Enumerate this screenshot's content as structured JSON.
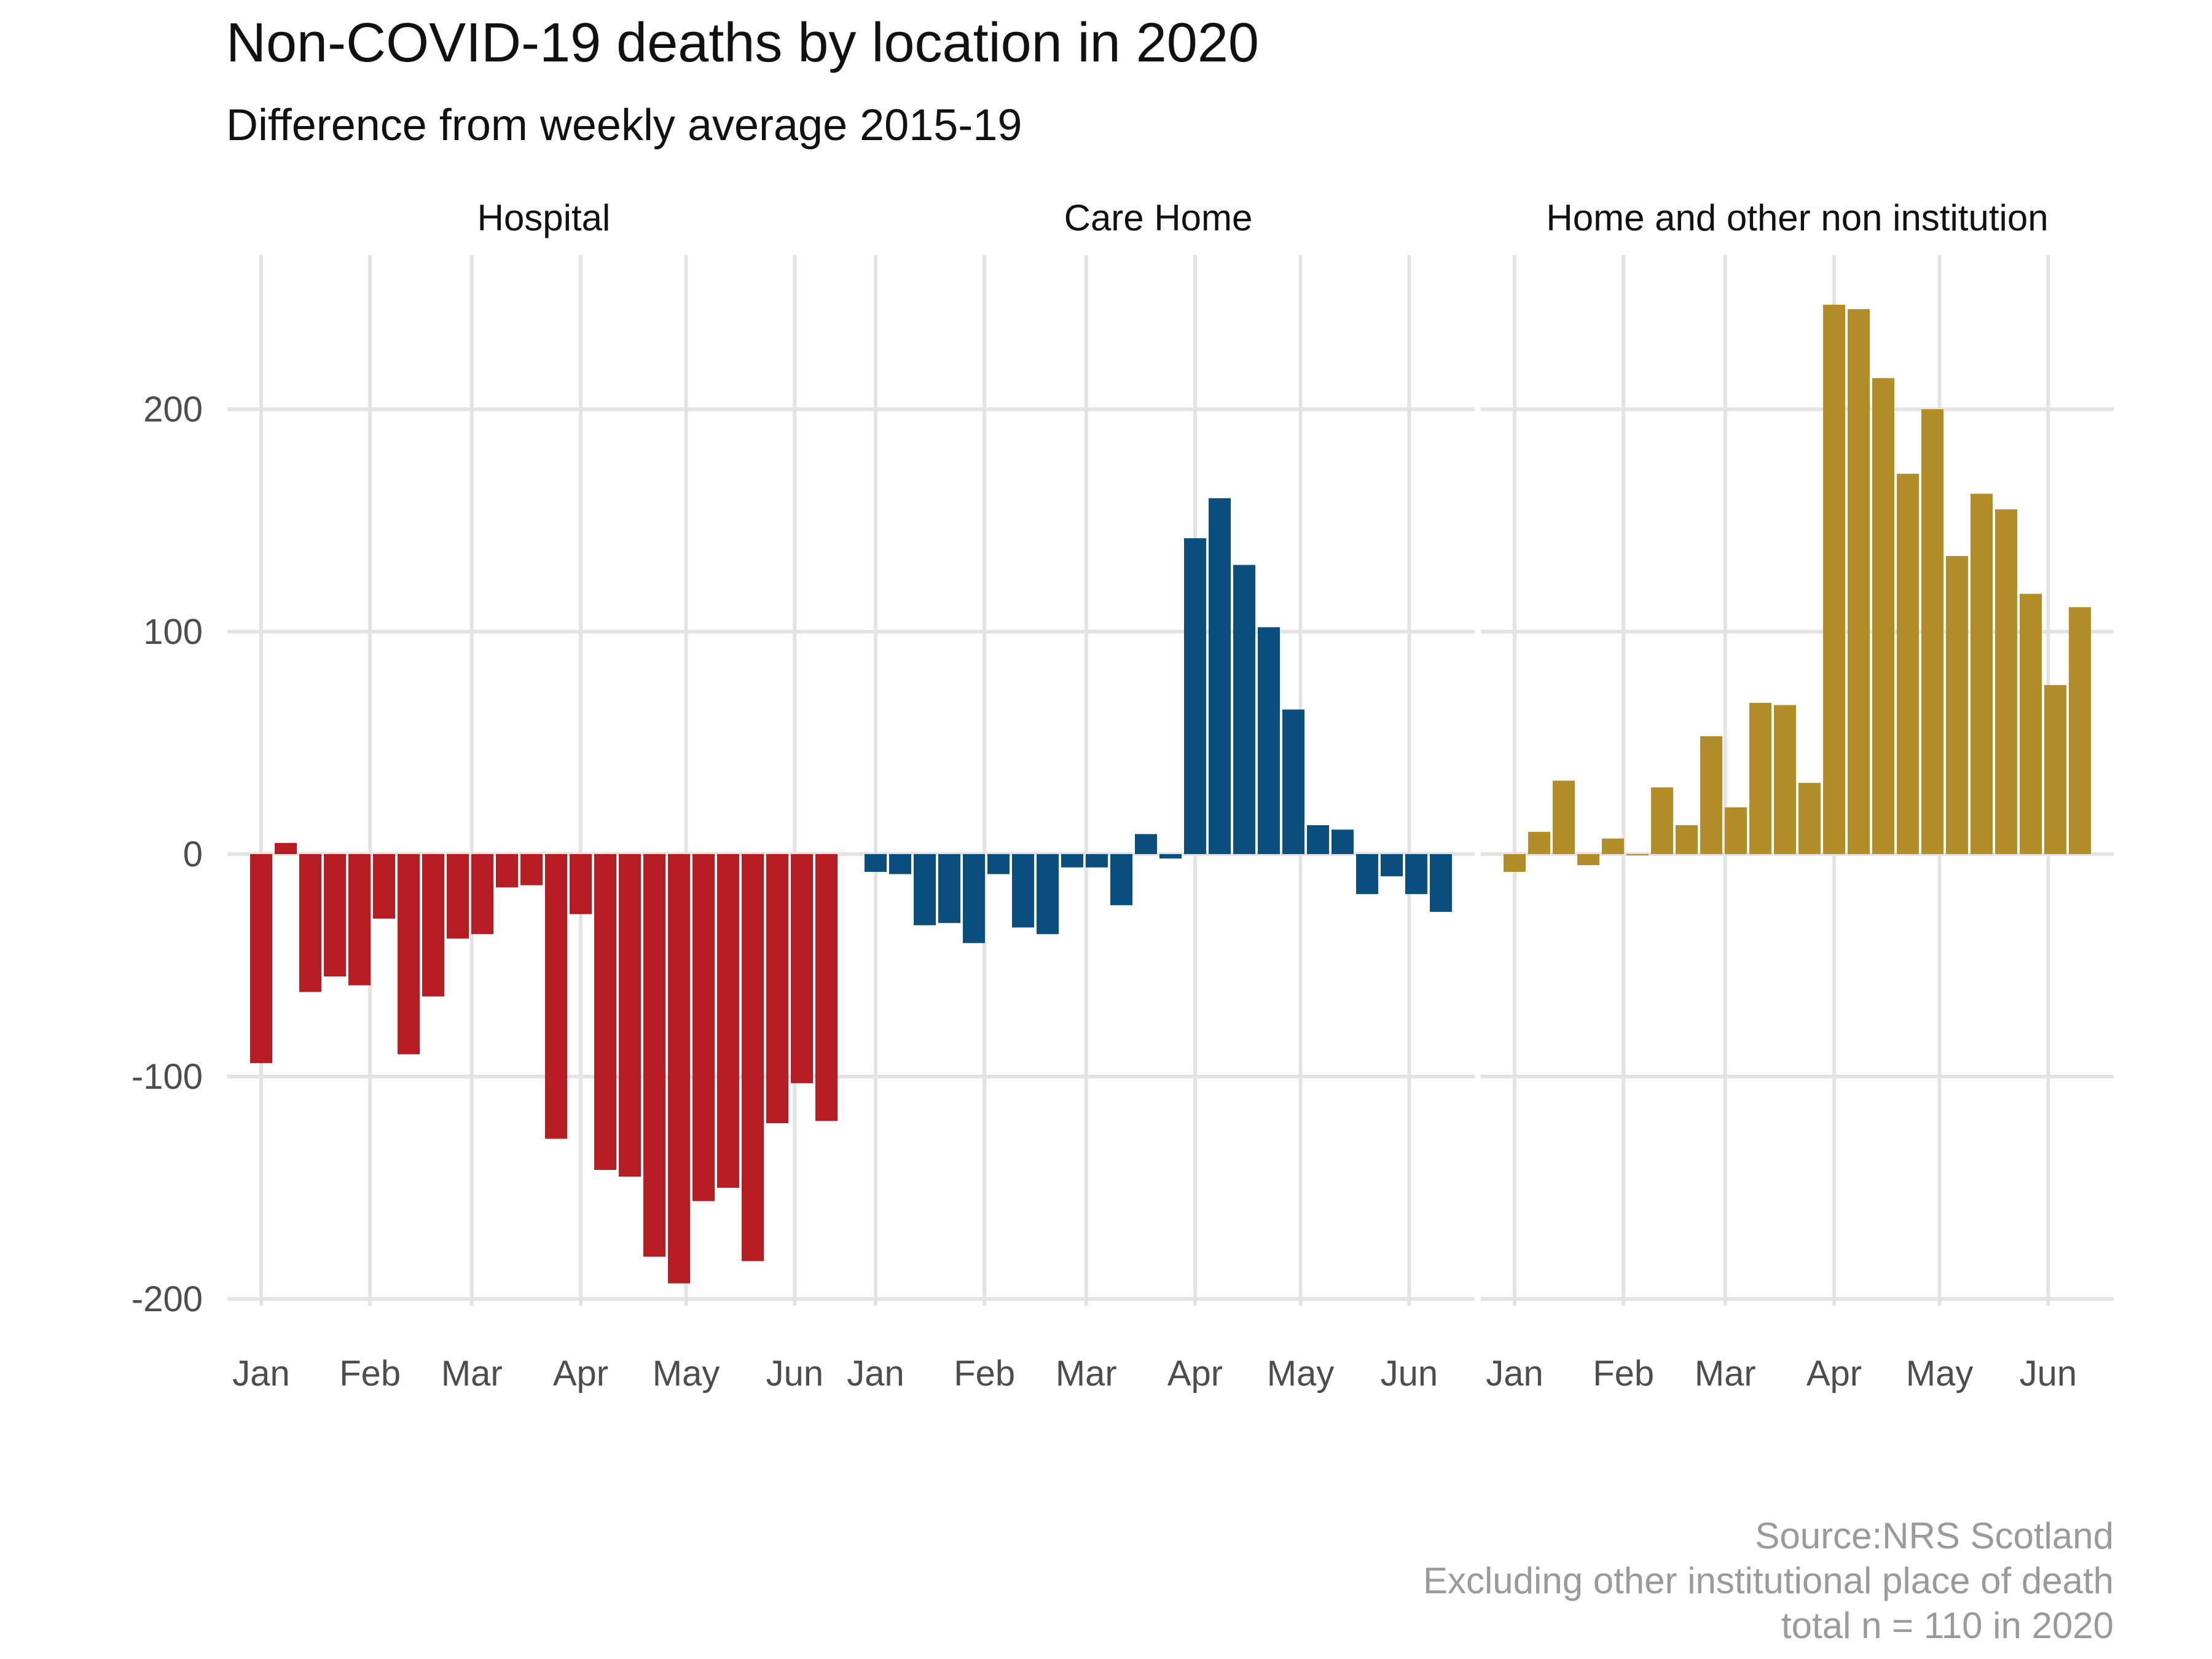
{
  "chart_data": {
    "type": "bar",
    "title": "Non-COVID-19 deaths by location in 2020",
    "subtitle": "Difference from weekly average 2015-19",
    "caption": [
      "Source:NRS Scotland",
      "Excluding other institutional place of death",
      "total n = 110 in 2020"
    ],
    "y_ticks": [
      -200,
      -100,
      0,
      100,
      200
    ],
    "y_tick_labels": [
      "-200",
      "-100",
      "0",
      "100",
      "200"
    ],
    "ylim": [
      -210,
      260
    ],
    "x_ticks": [
      {
        "label": "Jan",
        "week": 1
      },
      {
        "label": "Feb",
        "week": 5.43
      },
      {
        "label": "Mar",
        "week": 9.57
      },
      {
        "label": "Apr",
        "week": 14
      },
      {
        "label": "May",
        "week": 18.29
      },
      {
        "label": "Jun",
        "week": 22.71
      }
    ],
    "grid": true,
    "panels": [
      {
        "name": "Hospital",
        "color": "#B71C23",
        "values": [
          -94,
          5,
          -62,
          -55,
          -59,
          -29,
          -90,
          -64,
          -38,
          -36,
          -15,
          -14,
          -128,
          -27,
          -142,
          -145,
          -181,
          -193,
          -156,
          -150,
          -183,
          -121,
          -103,
          -120
        ]
      },
      {
        "name": "Care Home",
        "color": "#0B4F7F",
        "values": [
          -8,
          -9,
          -32,
          -31,
          -40,
          -9,
          -33,
          -36,
          -6,
          -6,
          -23,
          9,
          -2,
          142,
          160,
          130,
          102,
          65,
          13,
          11,
          -18,
          -10,
          -18,
          -26
        ]
      },
      {
        "name": "Home and other non institution",
        "color": "#B38E28",
        "values": [
          -8,
          10,
          33,
          -5,
          7,
          0,
          30,
          13,
          53,
          21,
          68,
          67,
          32,
          247,
          245,
          214,
          171,
          200,
          134,
          162,
          155,
          117,
          76,
          111
        ]
      }
    ]
  }
}
